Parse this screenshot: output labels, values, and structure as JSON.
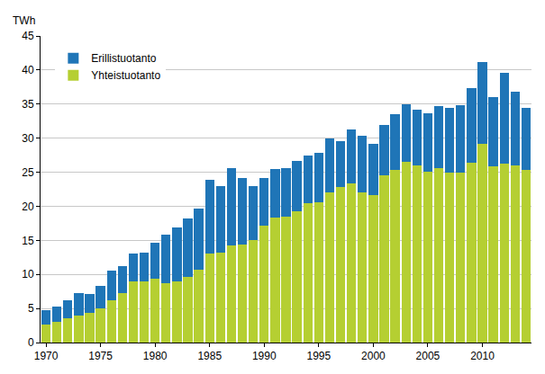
{
  "chart_data": {
    "type": "bar",
    "stacked": true,
    "ylabel": "TWh",
    "x": [
      1970,
      1971,
      1972,
      1973,
      1974,
      1975,
      1976,
      1977,
      1978,
      1979,
      1980,
      1981,
      1982,
      1983,
      1984,
      1985,
      1986,
      1987,
      1988,
      1989,
      1990,
      1991,
      1992,
      1993,
      1994,
      1995,
      1996,
      1997,
      1998,
      1999,
      2000,
      2001,
      2002,
      2003,
      2004,
      2005,
      2006,
      2007,
      2008,
      2009,
      2010,
      2011,
      2012,
      2013,
      2014
    ],
    "series": [
      {
        "name": "Yhteistuotanto",
        "color": "#b5cf32",
        "values": [
          2.7,
          3.0,
          3.5,
          3.9,
          4.3,
          5.0,
          6.2,
          7.2,
          9.0,
          9.0,
          9.4,
          8.7,
          9.0,
          9.7,
          10.7,
          13.1,
          13.2,
          14.3,
          14.4,
          15.0,
          17.1,
          18.3,
          18.5,
          19.3,
          20.5,
          20.6,
          22.0,
          22.8,
          23.4,
          22.1,
          21.7,
          24.6,
          25.3,
          26.5,
          26.0,
          25.1,
          25.6,
          25.0,
          25.0,
          26.4,
          29.1,
          25.8,
          26.3,
          26.0,
          25.4
        ]
      },
      {
        "name": "Erillistuotanto",
        "color": "#1f75b7",
        "values": [
          2.1,
          2.3,
          2.7,
          3.4,
          2.8,
          3.3,
          4.3,
          4.0,
          4.0,
          4.2,
          5.3,
          7.1,
          7.9,
          8.5,
          8.9,
          10.8,
          9.8,
          11.3,
          9.8,
          7.9,
          7.0,
          7.2,
          7.1,
          7.4,
          7.0,
          7.3,
          8.0,
          6.8,
          7.9,
          8.2,
          7.5,
          7.4,
          8.2,
          8.5,
          8.2,
          8.5,
          9.1,
          9.5,
          9.8,
          10.9,
          12.1,
          10.2,
          13.3,
          10.8,
          9.0
        ]
      }
    ],
    "xlim": [
      1969.5,
      2014.5
    ],
    "xticks": [
      1970,
      1975,
      1980,
      1985,
      1990,
      1995,
      2000,
      2005,
      2010
    ],
    "ylim": [
      0,
      45
    ],
    "yticks": [
      0,
      5,
      10,
      15,
      20,
      25,
      30,
      35,
      40,
      45
    ],
    "grid": true,
    "legend": "top-left"
  }
}
